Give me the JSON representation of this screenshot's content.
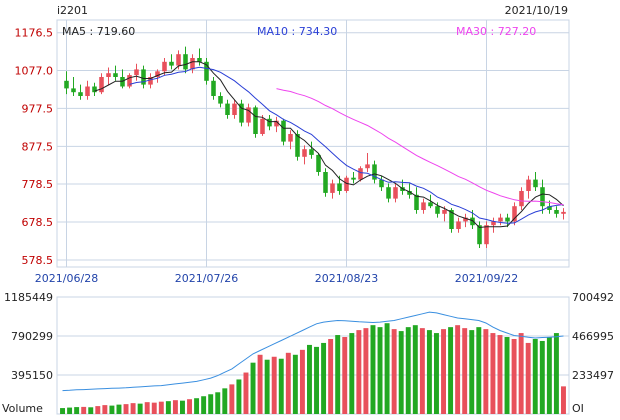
{
  "header": {
    "symbol": "i2201",
    "date": "2021/10/19",
    "ma5_label": "MA5 : 719.60",
    "ma10_label": "MA10 : 734.30",
    "ma30_label": "MA30 : 727.20"
  },
  "colors": {
    "up": "#e8505b",
    "down": "#22a822",
    "ma5": "#222222",
    "ma10": "#2a3fd6",
    "ma30": "#ee44ee",
    "oi": "#3a8fe0",
    "grid": "#c8d4e4",
    "axis_text_red": "#c00000",
    "text": "#222222"
  },
  "chart_data": [
    {
      "type": "candlestick",
      "ylim": [
        560,
        1210
      ],
      "y_ticks": [
        "1176.5",
        "1077.0",
        "977.5",
        "877.5",
        "778.5",
        "678.5",
        "578.5"
      ],
      "y_tick_values": [
        1176.5,
        1077.0,
        977.5,
        877.5,
        778.5,
        678.5,
        578.5
      ],
      "x_ticks": [
        "2021/06/28",
        "2021/07/26",
        "2021/08/23",
        "2021/09/22"
      ],
      "x_tick_index": [
        0,
        20,
        40,
        60
      ],
      "ohlc": [
        [
          1050,
          1075,
          1015,
          1030
        ],
        [
          1030,
          1060,
          1010,
          1020
        ],
        [
          1020,
          1040,
          1000,
          1010
        ],
        [
          1010,
          1050,
          1000,
          1035
        ],
        [
          1035,
          1045,
          1010,
          1020
        ],
        [
          1020,
          1070,
          1015,
          1060
        ],
        [
          1060,
          1085,
          1040,
          1070
        ],
        [
          1070,
          1090,
          1050,
          1060
        ],
        [
          1060,
          1080,
          1030,
          1035
        ],
        [
          1035,
          1070,
          1030,
          1065
        ],
        [
          1065,
          1095,
          1050,
          1080
        ],
        [
          1080,
          1090,
          1030,
          1040
        ],
        [
          1040,
          1070,
          1030,
          1060
        ],
        [
          1060,
          1080,
          1045,
          1075
        ],
        [
          1075,
          1110,
          1065,
          1100
        ],
        [
          1100,
          1120,
          1080,
          1090
        ],
        [
          1090,
          1130,
          1080,
          1120
        ],
        [
          1120,
          1140,
          1070,
          1080
        ],
        [
          1080,
          1120,
          1070,
          1110
        ],
        [
          1110,
          1135,
          1090,
          1100
        ],
        [
          1100,
          1110,
          1040,
          1050
        ],
        [
          1050,
          1060,
          1000,
          1010
        ],
        [
          1010,
          1020,
          980,
          990
        ],
        [
          990,
          1000,
          950,
          960
        ],
        [
          960,
          1000,
          950,
          990
        ],
        [
          990,
          1000,
          930,
          940
        ],
        [
          940,
          990,
          930,
          980
        ],
        [
          980,
          985,
          900,
          910
        ],
        [
          910,
          960,
          905,
          950
        ],
        [
          950,
          960,
          920,
          930
        ],
        [
          930,
          955,
          915,
          945
        ],
        [
          945,
          950,
          880,
          890
        ],
        [
          890,
          920,
          870,
          910
        ],
        [
          910,
          920,
          840,
          850
        ],
        [
          850,
          880,
          830,
          870
        ],
        [
          870,
          890,
          845,
          855
        ],
        [
          855,
          860,
          800,
          810
        ],
        [
          810,
          820,
          745,
          755
        ],
        [
          755,
          790,
          740,
          780
        ],
        [
          780,
          800,
          750,
          760
        ],
        [
          760,
          800,
          755,
          795
        ],
        [
          795,
          810,
          780,
          790
        ],
        [
          790,
          825,
          785,
          820
        ],
        [
          820,
          860,
          810,
          830
        ],
        [
          830,
          840,
          780,
          790
        ],
        [
          790,
          800,
          760,
          770
        ],
        [
          770,
          780,
          730,
          740
        ],
        [
          740,
          780,
          730,
          770
        ],
        [
          770,
          790,
          750,
          760
        ],
        [
          760,
          780,
          740,
          750
        ],
        [
          750,
          770,
          700,
          710
        ],
        [
          710,
          740,
          700,
          730
        ],
        [
          730,
          750,
          715,
          720
        ],
        [
          720,
          730,
          690,
          700
        ],
        [
          700,
          720,
          680,
          710
        ],
        [
          710,
          715,
          650,
          660
        ],
        [
          660,
          690,
          650,
          680
        ],
        [
          680,
          700,
          665,
          690
        ],
        [
          690,
          710,
          660,
          670
        ],
        [
          670,
          680,
          610,
          620
        ],
        [
          620,
          680,
          610,
          670
        ],
        [
          670,
          690,
          650,
          680
        ],
        [
          680,
          700,
          670,
          690
        ],
        [
          690,
          700,
          665,
          680
        ],
        [
          680,
          730,
          670,
          720
        ],
        [
          720,
          770,
          710,
          760
        ],
        [
          760,
          800,
          740,
          790
        ],
        [
          790,
          810,
          760,
          770
        ],
        [
          770,
          790,
          700,
          720
        ],
        [
          720,
          735,
          700,
          710
        ],
        [
          710,
          720,
          690,
          700
        ],
        [
          700,
          715,
          685,
          705
        ]
      ],
      "ma30_start_index": 30
    },
    {
      "type": "bar",
      "label_left": "Volume",
      "label_right": "OI",
      "ylim": [
        0,
        1185449
      ],
      "left_ticks": [
        "1185449",
        "790299",
        "395150"
      ],
      "left_tick_values": [
        1185449,
        790299,
        395150
      ],
      "right_ticks": [
        "700492",
        "466995",
        "233497"
      ],
      "right_tick_values": [
        700492,
        466995,
        233497
      ],
      "oi_ylim": [
        0,
        700492
      ],
      "volume": [
        60000,
        65000,
        70000,
        72000,
        68000,
        80000,
        90000,
        85000,
        95000,
        100000,
        110000,
        105000,
        120000,
        115000,
        125000,
        130000,
        140000,
        135000,
        150000,
        160000,
        180000,
        200000,
        220000,
        260000,
        300000,
        350000,
        420000,
        520000,
        600000,
        550000,
        580000,
        560000,
        620000,
        600000,
        650000,
        700000,
        680000,
        720000,
        760000,
        800000,
        780000,
        820000,
        850000,
        870000,
        900000,
        880000,
        920000,
        860000,
        840000,
        880000,
        900000,
        870000,
        850000,
        820000,
        860000,
        880000,
        900000,
        870000,
        850000,
        880000,
        860000,
        820000,
        800000,
        780000,
        760000,
        820000,
        720000,
        760000,
        740000,
        780000,
        820000,
        280000
      ],
      "oi": [
        140000,
        142000,
        145000,
        146000,
        148000,
        150000,
        152000,
        154000,
        155000,
        157000,
        160000,
        162000,
        165000,
        168000,
        170000,
        175000,
        180000,
        185000,
        190000,
        195000,
        205000,
        215000,
        230000,
        250000,
        270000,
        300000,
        330000,
        360000,
        380000,
        400000,
        420000,
        440000,
        460000,
        480000,
        500000,
        520000,
        540000,
        550000,
        555000,
        560000,
        558000,
        555000,
        552000,
        550000,
        548000,
        550000,
        555000,
        560000,
        570000,
        580000,
        590000,
        600000,
        610000,
        605000,
        595000,
        585000,
        575000,
        570000,
        565000,
        560000,
        545000,
        520000,
        500000,
        485000,
        470000,
        465000,
        460000,
        455000,
        458000,
        460000,
        462000,
        466995
      ]
    }
  ]
}
